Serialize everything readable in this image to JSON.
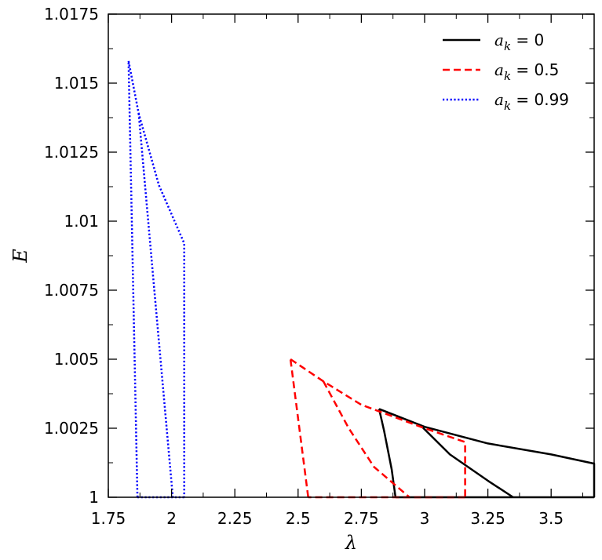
{
  "chart_data": {
    "type": "line",
    "xlabel": "λ",
    "ylabel": "E",
    "xlim": [
      1.75,
      3.67
    ],
    "ylim": [
      1.0,
      1.0175
    ],
    "x_ticks": [
      1.75,
      2,
      2.25,
      2.5,
      2.75,
      3,
      3.25,
      3.5
    ],
    "x_tick_labels": [
      "1.75",
      "2",
      "2.25",
      "2.5",
      "2.75",
      "3",
      "3.25",
      "3.5"
    ],
    "y_ticks": [
      1.0,
      1.0025,
      1.005,
      1.0075,
      1.01,
      1.0125,
      1.015,
      1.0175
    ],
    "y_tick_labels": [
      "1",
      "1.0025",
      "1.005",
      "1.0075",
      "1.01",
      "1.0125",
      "1.015",
      "1.0175"
    ],
    "grid": false,
    "legend_position": "top-right",
    "colors": {
      "black": "#000000",
      "red": "#ff0000",
      "blue": "#0000ff"
    },
    "series": [
      {
        "name": "a_k = 0",
        "legend": {
          "sym": "a",
          "sub": "k",
          "eq": " = 0"
        },
        "color": "#000000",
        "dash": "solid",
        "segments": [
          [
            [
              2.82,
              1.0032
            ],
            [
              3.0,
              1.00255
            ],
            [
              3.25,
              1.00195
            ],
            [
              3.5,
              1.00155
            ],
            [
              3.67,
              1.00122
            ],
            [
              3.67,
              1.0
            ]
          ],
          [
            [
              3.67,
              1.0
            ],
            [
              3.35,
              1.0
            ]
          ],
          [
            [
              3.35,
              1.0
            ],
            [
              3.25,
              1.0006
            ],
            [
              3.1,
              1.00155
            ],
            [
              2.99,
              1.00255
            ]
          ],
          [
            [
              2.82,
              1.0032
            ],
            [
              2.84,
              1.0024
            ],
            [
              2.87,
              1.001
            ],
            [
              2.885,
              1.0
            ]
          ],
          [
            [
              2.885,
              1.0
            ],
            [
              3.35,
              1.0
            ]
          ]
        ]
      },
      {
        "name": "a_k = 0.5",
        "legend": {
          "sym": "a",
          "sub": "k",
          "eq": " = 0.5"
        },
        "color": "#ff0000",
        "dash": "dashed",
        "segments": [
          [
            [
              2.47,
              1.005
            ],
            [
              2.6,
              1.0042
            ],
            [
              2.75,
              1.00335
            ],
            [
              3.0,
              1.0025
            ],
            [
              3.16,
              1.002
            ],
            [
              3.16,
              1.0
            ]
          ],
          [
            [
              3.16,
              1.0
            ],
            [
              2.54,
              1.0
            ]
          ],
          [
            [
              2.54,
              1.0
            ],
            [
              2.47,
              1.005
            ]
          ],
          [
            [
              2.6,
              1.0042
            ],
            [
              2.7,
              1.0025
            ],
            [
              2.8,
              1.0011
            ],
            [
              2.94,
              1.0
            ]
          ]
        ]
      },
      {
        "name": "a_k = 0.99",
        "legend": {
          "sym": "a",
          "sub": "k",
          "eq": " = 0.99"
        },
        "color": "#0000ff",
        "dash": "dotted",
        "segments": [
          [
            [
              1.83,
              1.0158
            ],
            [
              1.87,
              1.0139
            ],
            [
              1.95,
              1.0113
            ],
            [
              2.05,
              1.0092
            ],
            [
              2.05,
              1.0
            ]
          ],
          [
            [
              2.05,
              1.0
            ],
            [
              1.865,
              1.0
            ]
          ],
          [
            [
              1.865,
              1.0
            ],
            [
              1.83,
              1.0158
            ]
          ],
          [
            [
              1.87,
              1.0139
            ],
            [
              1.93,
              1.0077
            ],
            [
              2.005,
              1.0
            ]
          ]
        ]
      }
    ]
  }
}
